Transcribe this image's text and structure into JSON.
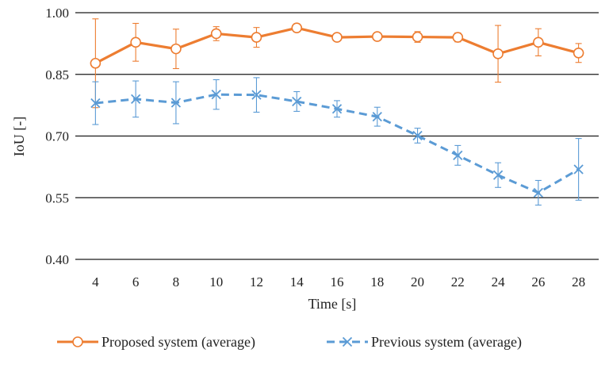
{
  "chart_data": {
    "type": "line",
    "xlabel": "Time [s]",
    "ylabel": "IoU [-]",
    "ylim": [
      0.4,
      1.0
    ],
    "y_ticks": [
      "0.40",
      "0.55",
      "0.70",
      "0.85",
      "1.00"
    ],
    "y_tick_values": [
      0.4,
      0.55,
      0.7,
      0.85,
      1.0
    ],
    "categories": [
      "4",
      "6",
      "8",
      "10",
      "12",
      "14",
      "16",
      "18",
      "20",
      "22",
      "24",
      "26",
      "28"
    ],
    "grid": "horizontal",
    "legend_position": "bottom",
    "series": [
      {
        "name": "Proposed system (average)",
        "color": "#ED7D31",
        "marker": "circle",
        "line": "solid",
        "values": [
          0.877,
          0.928,
          0.912,
          0.949,
          0.94,
          0.963,
          0.94,
          0.942,
          0.941,
          0.94,
          0.9,
          0.928,
          0.902
        ],
        "error": [
          0.108,
          0.046,
          0.048,
          0.017,
          0.024,
          0.01,
          0.008,
          0.008,
          0.013,
          0.011,
          0.069,
          0.033,
          0.023
        ]
      },
      {
        "name": "Previous system (average)",
        "color": "#5B9BD5",
        "marker": "x",
        "line": "dashed",
        "values": [
          0.78,
          0.79,
          0.781,
          0.801,
          0.8,
          0.784,
          0.766,
          0.747,
          0.701,
          0.653,
          0.605,
          0.562,
          0.619
        ],
        "error": [
          0.052,
          0.044,
          0.051,
          0.036,
          0.042,
          0.024,
          0.02,
          0.023,
          0.018,
          0.024,
          0.03,
          0.03,
          0.075
        ]
      }
    ]
  }
}
